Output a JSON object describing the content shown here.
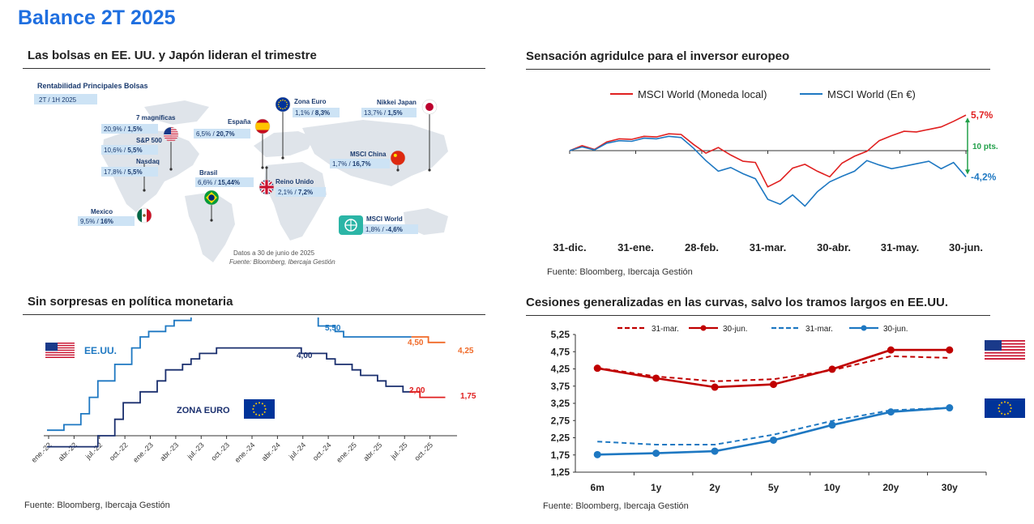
{
  "page": {
    "title": "Balance 2T 2025",
    "panels": {
      "map": {
        "title": "Las bolsas en EE. UU. y Japón lideran el trimestre"
      },
      "msci": {
        "title": "Sensación agridulce para el inversor europeo"
      },
      "rates": {
        "title": "Sin sorpresas en política monetaria"
      },
      "curves": {
        "title": "Cesiones generalizadas en las curvas, salvo los tramos largos en EE.UU."
      }
    }
  },
  "chart_data": [
    {
      "type": "table",
      "subtitle": "Rentabilidad Principales Bolsas",
      "period": "2T / 1H 2025",
      "columns": [
        "2T",
        "1H 2025"
      ],
      "rows": [
        {
          "name": "7 magníficas",
          "q2": "20,9%",
          "h1": "1,5%",
          "flag": "us-flag-icon"
        },
        {
          "name": "S&P 500",
          "q2": "10,6%",
          "h1": "5,5%",
          "flag": "us-flag-icon"
        },
        {
          "name": "Nasdaq",
          "q2": "17,8%",
          "h1": "5,5%",
          "flag": "us-flag-icon"
        },
        {
          "name": "Mexico",
          "q2": "9,5%",
          "h1": "16%",
          "flag": "mexico-flag-icon"
        },
        {
          "name": "España",
          "q2": "6,5%",
          "h1": "20,7%",
          "flag": "spain-flag-icon"
        },
        {
          "name": "Brasil",
          "q2": "6,6%",
          "h1": "15,44%",
          "flag": "brazil-flag-icon"
        },
        {
          "name": "Zona Euro",
          "q2": "1,1%",
          "h1": "8,3%",
          "flag": "eu-flag-icon"
        },
        {
          "name": "Reino Unido",
          "q2": "2,1%",
          "h1": "7,2%",
          "flag": "uk-flag-icon"
        },
        {
          "name": "MSCI China",
          "q2": "1,7%",
          "h1": "16,7%",
          "flag": "china-flag-icon"
        },
        {
          "name": "Nikkei Japan",
          "q2": "13,7%",
          "h1": "1,5%",
          "flag": "japan-flag-icon"
        },
        {
          "name": "MSCI  World",
          "q2": "1,8%",
          "h1": "-4,6%",
          "flag": "globe-icon"
        }
      ],
      "note": "Datos a 30 de junio de 2025",
      "source": "Fuente: Bloomberg, Ibercaja Gestión"
    },
    {
      "type": "line",
      "x_ticks": [
        "31-dic.",
        "31-ene.",
        "28-feb.",
        "31-mar.",
        "30-abr.",
        "31-may.",
        "30-jun."
      ],
      "series": [
        {
          "name": "MSCI World (Moneda local)",
          "color": "#e02020",
          "values": [
            0,
            0.8,
            0.2,
            1.4,
            1.9,
            1.8,
            2.3,
            2.2,
            2.7,
            2.6,
            1.0,
            -0.4,
            0.5,
            -0.7,
            -1.7,
            -1.9,
            -5.8,
            -4.8,
            -2.8,
            -2.2,
            -3.3,
            -4.2,
            -2.0,
            -0.9,
            -0.1,
            1.6,
            2.4,
            3.1,
            3.0,
            3.4,
            3.8,
            4.7,
            5.7
          ],
          "end_label": "5,7%"
        },
        {
          "name": "MSCI World (En €)",
          "color": "#1e78c2",
          "values": [
            0,
            0.6,
            0.1,
            1.2,
            1.6,
            1.5,
            2.0,
            1.9,
            2.3,
            2.1,
            0.4,
            -1.6,
            -3.3,
            -2.7,
            -3.7,
            -4.5,
            -7.8,
            -8.6,
            -7.1,
            -8.9,
            -6.6,
            -5.0,
            -4.1,
            -3.3,
            -1.6,
            -2.3,
            -2.9,
            -2.5,
            -2.1,
            -1.7,
            -2.9,
            -1.9,
            -4.2
          ],
          "end_label": "-4,2%"
        }
      ],
      "annotation": "10 pts.",
      "source": "Fuente: Bloomberg, Ibercaja Gestión"
    },
    {
      "type": "line",
      "x_ticks": [
        "ene.-22",
        "abr.-22",
        "jul.-22",
        "oct.-22",
        "ene.-23",
        "abr.-23",
        "jul.-23",
        "oct.-23",
        "ene.-24",
        "abr.-24",
        "jul.-24",
        "oct.-24",
        "ene.-25",
        "abr.-25",
        "jul.-25",
        "oct.-25"
      ],
      "legend": [
        "EE.UU.",
        "ZONA EURO"
      ],
      "series": [
        {
          "name": "EE.UU.",
          "color": "#1e78c2",
          "forecast_color": "#f06a28",
          "values": [
            0.25,
            0.25,
            0.5,
            0.5,
            1.0,
            1.75,
            2.5,
            2.5,
            3.25,
            3.25,
            4.0,
            4.5,
            4.75,
            4.75,
            5.0,
            5.25,
            5.25,
            5.5,
            5.5,
            5.5,
            5.5,
            5.5,
            5.5,
            5.5,
            5.5,
            5.5,
            5.5,
            5.5,
            5.5,
            5.5,
            5.5,
            5.5,
            5.0,
            5.0,
            4.75,
            4.5,
            4.5,
            4.5,
            4.5,
            4.5,
            4.5,
            4.5,
            4.5,
            4.5
          ],
          "forecast_values": [
            4.5,
            4.5,
            4.25,
            4.25,
            4.25
          ],
          "labels": [
            "5,50",
            "4,50",
            "4,25"
          ]
        },
        {
          "name": "ZONA EURO",
          "color": "#1a2f6e",
          "forecast_color": "#e02020",
          "values": [
            -0.5,
            -0.5,
            -0.5,
            -0.5,
            -0.5,
            -0.5,
            0.0,
            0.0,
            0.75,
            1.5,
            1.5,
            2.0,
            2.0,
            2.5,
            3.0,
            3.0,
            3.25,
            3.5,
            3.75,
            3.75,
            4.0,
            4.0,
            4.0,
            4.0,
            4.0,
            4.0,
            4.0,
            4.0,
            4.0,
            4.0,
            3.75,
            3.75,
            3.75,
            3.5,
            3.25,
            3.25,
            3.0,
            2.75,
            2.75,
            2.5,
            2.25,
            2.25,
            2.0,
            2.0
          ],
          "forecast_values": [
            2.0,
            1.75,
            1.75,
            1.75,
            1.75
          ],
          "labels": [
            "4,00",
            "2,00",
            "1,75"
          ]
        }
      ],
      "source": "Fuente: Bloomberg, Ibercaja Gestión"
    },
    {
      "type": "line",
      "categories": [
        "6m",
        "1y",
        "2y",
        "5y",
        "10y",
        "20y",
        "30y"
      ],
      "y_ticks": [
        "5,25",
        "4,75",
        "4,25",
        "3,75",
        "3,25",
        "2,75",
        "2,25",
        "1,75",
        "1,25"
      ],
      "ylim": [
        1.25,
        5.25
      ],
      "series": [
        {
          "name": "31-mar.",
          "color": "#c00000",
          "dashed": true,
          "values": [
            4.28,
            4.03,
            3.89,
            3.95,
            4.21,
            4.62,
            4.57
          ]
        },
        {
          "name": "30-jun.",
          "color": "#c00000",
          "dashed": false,
          "values": [
            4.27,
            3.98,
            3.72,
            3.8,
            4.24,
            4.8,
            4.8
          ]
        },
        {
          "name": "31-mar.",
          "color": "#1e78c2",
          "dashed": true,
          "values": [
            2.14,
            2.05,
            2.05,
            2.34,
            2.74,
            3.05,
            3.12
          ]
        },
        {
          "name": "30-jun.",
          "color": "#1e78c2",
          "dashed": false,
          "values": [
            1.76,
            1.8,
            1.86,
            2.18,
            2.62,
            3.0,
            3.12
          ]
        }
      ],
      "source": "Fuente: Bloomberg, Ibercaja Gestión"
    }
  ]
}
